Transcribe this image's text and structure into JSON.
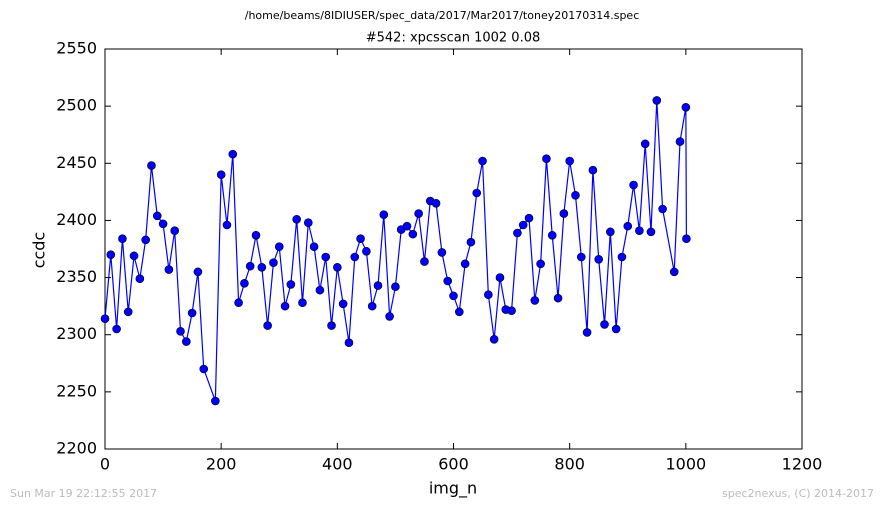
{
  "chart_data": {
    "type": "line",
    "title": "/home/beams/8IDIUSER/spec_data/2017/Mar2017/toney20170314.spec",
    "subtitle": "#542: xpcsscan 1002 0.08",
    "xlabel": "img_n",
    "ylabel": "ccdc",
    "footer_left": "Sun Mar 19 22:12:55 2017",
    "footer_right": "spec2nexus, (C) 2014-2017",
    "x": [
      0,
      10,
      20,
      30,
      40,
      50,
      60,
      70,
      80,
      90,
      100,
      110,
      120,
      130,
      140,
      150,
      160,
      170,
      190,
      200,
      210,
      220,
      230,
      240,
      250,
      260,
      270,
      280,
      290,
      300,
      310,
      320,
      330,
      340,
      350,
      360,
      370,
      380,
      390,
      400,
      410,
      420,
      430,
      440,
      450,
      460,
      470,
      480,
      490,
      500,
      510,
      520,
      530,
      540,
      550,
      560,
      570,
      580,
      590,
      600,
      610,
      620,
      630,
      640,
      650,
      660,
      670,
      680,
      690,
      700,
      710,
      720,
      730,
      740,
      750,
      760,
      770,
      780,
      790,
      800,
      810,
      820,
      830,
      840,
      850,
      860,
      870,
      880,
      890,
      900,
      910,
      920,
      930,
      940,
      950,
      960,
      980,
      990,
      1000,
      1001
    ],
    "series": [
      {
        "name": "ccdc",
        "color": "#0000ff",
        "values": [
          2314,
          2370,
          2305,
          2384,
          2320,
          2369,
          2349,
          2383,
          2448,
          2404,
          2397,
          2357,
          2391,
          2303,
          2294,
          2319,
          2355,
          2270,
          2242,
          2440,
          2396,
          2458,
          2328,
          2345,
          2360,
          2387,
          2359,
          2308,
          2363,
          2377,
          2325,
          2344,
          2401,
          2328,
          2398,
          2377,
          2339,
          2368,
          2308,
          2359,
          2327,
          2293,
          2368,
          2384,
          2373,
          2325,
          2343,
          2405,
          2316,
          2342,
          2392,
          2395,
          2388,
          2406,
          2364,
          2417,
          2415,
          2372,
          2347,
          2334,
          2320,
          2362,
          2381,
          2424,
          2452,
          2335,
          2296,
          2350,
          2322,
          2321,
          2389,
          2396,
          2402,
          2330,
          2362,
          2454,
          2387,
          2332,
          2406,
          2452,
          2422,
          2368,
          2302,
          2444,
          2366,
          2309,
          2390,
          2305,
          2368,
          2395,
          2431,
          2391,
          2467,
          2390,
          2505,
          2410,
          2355,
          2469,
          2499,
          2384
        ]
      }
    ],
    "xlim": [
      0,
      1200
    ],
    "xticks": [
      0,
      200,
      400,
      600,
      800,
      1000,
      1200
    ],
    "ylim": [
      2200,
      2550
    ],
    "yticks": [
      2200,
      2250,
      2300,
      2350,
      2400,
      2450,
      2500,
      2550
    ],
    "grid": false
  }
}
